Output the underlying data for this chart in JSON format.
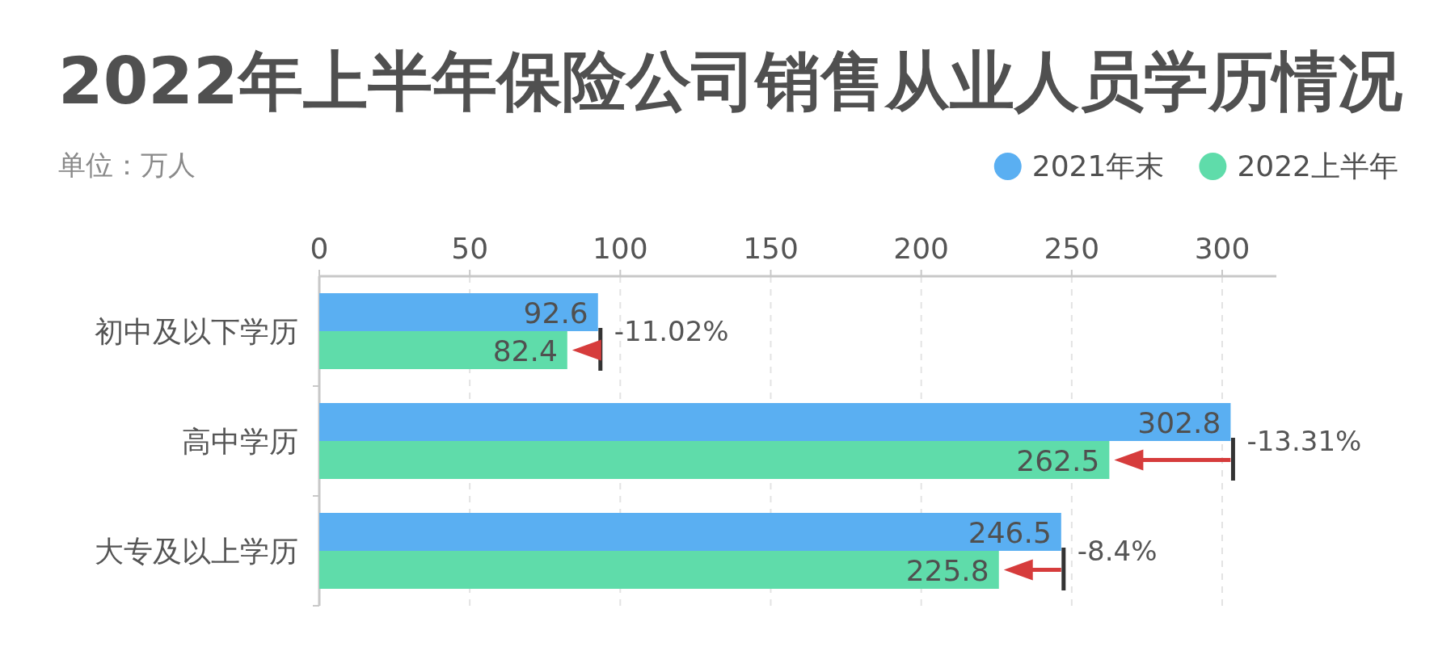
{
  "chart_data": {
    "type": "bar",
    "orientation": "horizontal",
    "title": "2022年上半年保险公司销售从业人员学历情况",
    "subtitle": "单位：万人",
    "categories": [
      "初中及以下学历",
      "高中学历",
      "大专及以上学历"
    ],
    "series": [
      {
        "name": "2021年末",
        "color": "#5aaff2",
        "values": [
          92.6,
          302.8,
          246.5
        ]
      },
      {
        "name": "2022上半年",
        "color": "#5fdcaa",
        "values": [
          82.4,
          262.5,
          225.8
        ]
      }
    ],
    "xlim": [
      0,
      318
    ],
    "xticks": [
      0,
      50,
      100,
      150,
      200,
      250,
      300
    ],
    "grid": "x",
    "legend": "top right",
    "data_labels": true,
    "annotations": [
      {
        "text": "-11.02%",
        "x": 92.6,
        "y": "初中及以下学历"
      },
      {
        "text": "-13.31%",
        "x": 302.8,
        "y": "高中学历"
      },
      {
        "text": "-8.4%",
        "x": 246.5,
        "y": "大专及以上学历"
      }
    ]
  }
}
